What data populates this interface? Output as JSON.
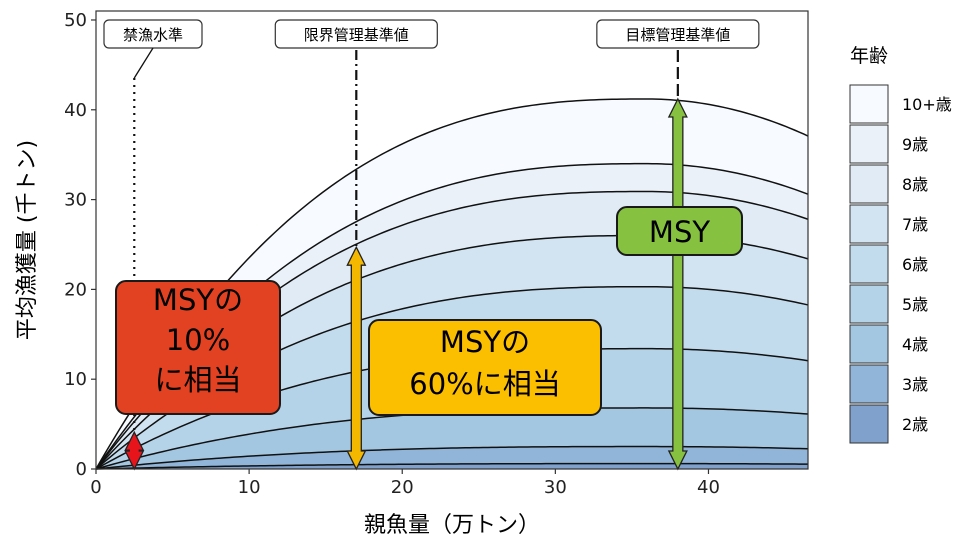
{
  "chart_data": {
    "type": "area",
    "xlabel": "親魚量（万トン）",
    "ylabel": "平均漁獲量 (千トン)",
    "xlim": [
      0,
      46.5
    ],
    "ylim": [
      0,
      51
    ],
    "x_ticks": [
      "0",
      "10",
      "20",
      "30",
      "40"
    ],
    "y_ticks": [
      "0",
      "10",
      "20",
      "30",
      "40",
      "50"
    ],
    "grid": false,
    "legend_title": "年齢",
    "legend_position": "right",
    "peak_x": 36.0,
    "end_value_fraction": 0.9,
    "stacked_cumulative_peaks": [
      {
        "name": "2歳",
        "peak": 0.6,
        "color": "#7fa1cc"
      },
      {
        "name": "3歳",
        "peak": 2.5,
        "color": "#90b5d9"
      },
      {
        "name": "4歳",
        "peak": 6.8,
        "color": "#a3c6e1"
      },
      {
        "name": "5歳",
        "peak": 13.4,
        "color": "#b4d3e9"
      },
      {
        "name": "6歳",
        "peak": 20.3,
        "color": "#c2dcee"
      },
      {
        "name": "7歳",
        "peak": 26.0,
        "color": "#d2e4f2"
      },
      {
        "name": "8歳",
        "peak": 30.9,
        "color": "#e0ebf6"
      },
      {
        "name": "9歳",
        "peak": 34.0,
        "color": "#eaf1f9"
      },
      {
        "name": "10+歳",
        "peak": 41.2,
        "color": "#f7fbff"
      }
    ],
    "legend_order": [
      "10+歳",
      "9歳",
      "8歳",
      "7歳",
      "6歳",
      "5歳",
      "4歳",
      "3歳",
      "2歳"
    ],
    "reference_points": [
      {
        "label": "禁漁水準",
        "x": 2.5,
        "style": "dotted"
      },
      {
        "label": "限界管理基準値",
        "x": 17.0,
        "style": "dashdot"
      },
      {
        "label": "目標管理基準値",
        "x": 38.0,
        "style": "dashed"
      }
    ],
    "arrows": [
      {
        "x": 2.5,
        "y_top": 4.1,
        "color": "#e8141b"
      },
      {
        "x": 17.0,
        "y_top": 24.7,
        "color": "#f5b800"
      },
      {
        "x": 38.0,
        "y_top": 41.2,
        "color": "#86c240"
      }
    ],
    "callouts": [
      {
        "lines": [
          "MSYの",
          "10%",
          "に相当"
        ],
        "color": "#e34222"
      },
      {
        "lines": [
          "MSYの",
          "60%に相当"
        ],
        "color": "#fbbf00"
      },
      {
        "lines": [
          "MSY"
        ],
        "color": "#86c240"
      }
    ]
  }
}
